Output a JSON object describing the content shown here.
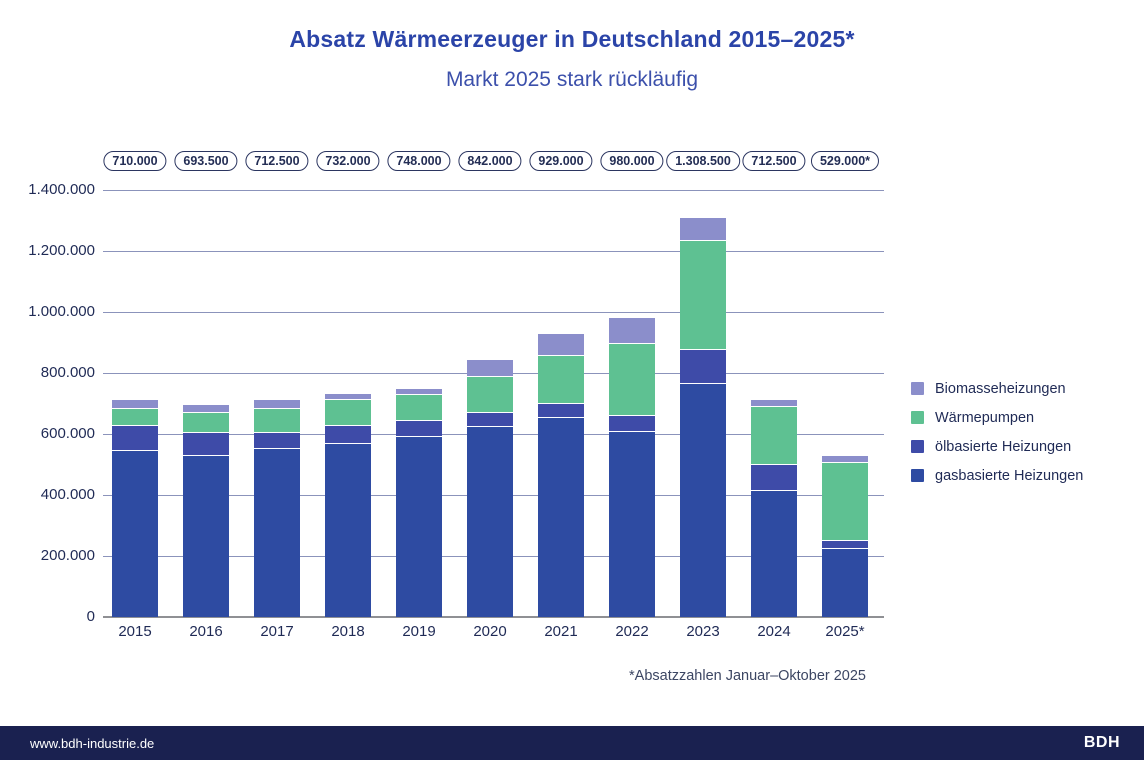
{
  "header": {
    "title": "Absatz Wärmeerzeuger in Deutschland 2015–2025*",
    "subtitle": "Markt 2025 stark rückläufig"
  },
  "chart_data": {
    "type": "bar",
    "stacked": true,
    "title": "Absatz Wärmeerzeuger in Deutschland 2015–2025*",
    "subtitle": "Markt 2025 stark rückläufig",
    "categories": [
      "2015",
      "2016",
      "2017",
      "2018",
      "2019",
      "2020",
      "2021",
      "2022",
      "2023",
      "2024",
      "2025*"
    ],
    "series": [
      {
        "name": "gasbasierte Heizungen",
        "color": "#2e4ba2",
        "values": [
          544000,
          527500,
          549500,
          566500,
          589500,
          624000,
          653000,
          605000,
          763500,
          413500,
          223000
        ]
      },
      {
        "name": "ölbasierte Heizungen",
        "color": "#3e4ba8",
        "values": [
          81500,
          75000,
          54500,
          59000,
          53000,
          44500,
          44000,
          53000,
          112500,
          86000,
          24500
        ]
      },
      {
        "name": "Wärmepumpen",
        "color": "#5ec192",
        "values": [
          56500,
          66000,
          78000,
          85000,
          86500,
          120000,
          158000,
          236000,
          356000,
          190000,
          256000
        ]
      },
      {
        "name": "Biomasseheizungen",
        "color": "#8b8ecb",
        "values": [
          28000,
          25000,
          30500,
          21500,
          19000,
          53500,
          74000,
          86000,
          76500,
          23000,
          25500
        ]
      }
    ],
    "totals": [
      710000,
      693500,
      712500,
      732000,
      748000,
      842000,
      929000,
      980000,
      1308500,
      712500,
      529000
    ],
    "total_labels": [
      "710.000",
      "693.500",
      "712.500",
      "732.000",
      "748.000",
      "842.000",
      "929.000",
      "980.000",
      "1.308.500",
      "712.500",
      "529.000*"
    ],
    "ylim": [
      0,
      1400000
    ],
    "yticks": [
      0,
      200000,
      400000,
      600000,
      800000,
      1000000,
      1200000,
      1400000
    ],
    "ytick_labels": [
      "0",
      "200.000",
      "400.000",
      "600.000",
      "800.000",
      "1.000.000",
      "1.200.000",
      "1.400.000"
    ],
    "grid": "horizontal",
    "legend_position": "right",
    "footnote": "*Absatzzahlen Januar–Oktober 2025"
  },
  "legend": {
    "items": [
      {
        "label": "Biomasseheizungen",
        "color": "#8b8ecb"
      },
      {
        "label": "Wärmepumpen",
        "color": "#5ec192"
      },
      {
        "label": "ölbasierte Heizungen",
        "color": "#3e4ba8"
      },
      {
        "label": "gasbasierte Heizungen",
        "color": "#2e4ba2"
      }
    ]
  },
  "footer": {
    "website": "www.bdh-industrie.de",
    "logo": "BDH"
  },
  "colors": {
    "title": "#2b44a8",
    "axis_text": "#1f2a55",
    "gridline": "#8b93bb",
    "baseline": "#8f9094",
    "footer_bg": "#1a2150"
  }
}
